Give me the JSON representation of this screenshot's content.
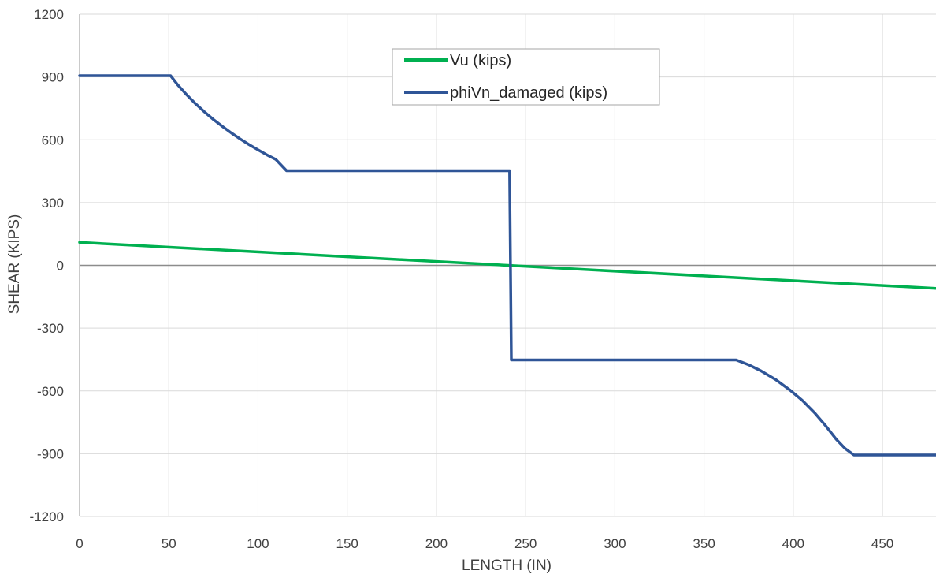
{
  "chart_data": {
    "type": "line",
    "title": "",
    "xlabel": "LENGTH (IN)",
    "ylabel": "SHEAR (KIPS)",
    "xlim": [
      0,
      480
    ],
    "ylim": [
      -1200,
      1200
    ],
    "x_ticks": [
      0,
      50,
      100,
      150,
      200,
      250,
      300,
      350,
      400,
      450
    ],
    "y_ticks": [
      1200,
      900,
      600,
      300,
      0,
      -300,
      -600,
      -900,
      -1200
    ],
    "grid": true,
    "legend_position": "top-center",
    "series": [
      {
        "name": "Vu (kips)",
        "color": "#00b050",
        "x": [
          0,
          120,
          240,
          360,
          480
        ],
        "y": [
          110,
          55,
          0,
          -55,
          -110
        ]
      },
      {
        "name": "phiVn_damaged (kips)",
        "color": "#2f5597",
        "x": [
          0,
          51,
          55,
          60,
          65,
          70,
          75,
          80,
          85,
          90,
          95,
          100,
          105,
          110,
          116,
          241,
          242,
          355,
          368,
          375,
          382,
          390,
          398,
          405,
          412,
          418,
          424,
          429,
          434,
          480
        ],
        "y": [
          906,
          906,
          862,
          815,
          772,
          733,
          697,
          664,
          633,
          604,
          577,
          552,
          528,
          506,
          452,
          452,
          -452,
          -452,
          -452,
          -475,
          -505,
          -545,
          -595,
          -645,
          -705,
          -765,
          -830,
          -875,
          -906,
          -906
        ]
      }
    ]
  }
}
